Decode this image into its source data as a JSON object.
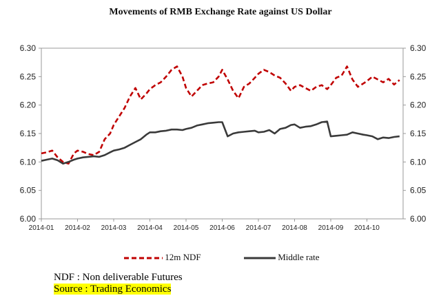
{
  "title": "Movements of RMB Exchange Rate against US Dollar",
  "colors": {
    "ndf": "#c00000",
    "mid": "#3a3a3a",
    "axis": "#999999"
  },
  "footnotes": {
    "ndf_def": "NDF  : Non deliverable Futures",
    "source": "Source : Trading Economics"
  },
  "chart_data": {
    "type": "line",
    "title": "Movements of RMB Exchange Rate against US Dollar",
    "xlabel": "",
    "ylabel": "",
    "ylim": [
      6.0,
      6.3
    ],
    "yticks": [
      "6.00",
      "6.05",
      "6.10",
      "6.15",
      "6.20",
      "6.25",
      "6.30"
    ],
    "x_ticks": [
      "2014-01",
      "2014-02",
      "2014-03",
      "2014-04",
      "2014-05",
      "2014-06",
      "2014-07",
      "2014-08",
      "2014-09",
      "2014-10"
    ],
    "x": [
      0.0,
      0.15,
      0.3,
      0.45,
      0.6,
      0.75,
      0.9,
      1.0,
      1.15,
      1.3,
      1.45,
      1.6,
      1.75,
      1.9,
      2.0,
      2.15,
      2.3,
      2.45,
      2.6,
      2.75,
      2.9,
      3.0,
      3.15,
      3.3,
      3.45,
      3.6,
      3.75,
      3.9,
      4.0,
      4.15,
      4.3,
      4.45,
      4.6,
      4.75,
      4.9,
      5.0,
      5.15,
      5.3,
      5.45,
      5.6,
      5.75,
      5.9,
      6.0,
      6.15,
      6.3,
      6.45,
      6.6,
      6.75,
      6.9,
      7.0,
      7.15,
      7.3,
      7.45,
      7.6,
      7.75,
      7.9,
      8.0,
      8.15,
      8.3,
      8.45,
      8.6,
      8.75,
      8.9,
      9.0,
      9.15,
      9.3,
      9.45,
      9.6,
      9.75,
      9.9
    ],
    "series": [
      {
        "name": "12m NDF",
        "style": "dashed",
        "values": [
          6.115,
          6.117,
          6.12,
          6.108,
          6.1,
          6.097,
          6.115,
          6.12,
          6.118,
          6.114,
          6.112,
          6.118,
          6.14,
          6.15,
          6.165,
          6.18,
          6.195,
          6.215,
          6.23,
          6.21,
          6.22,
          6.228,
          6.235,
          6.24,
          6.25,
          6.262,
          6.268,
          6.25,
          6.23,
          6.215,
          6.225,
          6.235,
          6.238,
          6.24,
          6.25,
          6.262,
          6.245,
          6.225,
          6.212,
          6.232,
          6.238,
          6.248,
          6.255,
          6.262,
          6.258,
          6.252,
          6.248,
          6.238,
          6.225,
          6.232,
          6.235,
          6.23,
          6.225,
          6.232,
          6.235,
          6.228,
          6.235,
          6.248,
          6.252,
          6.268,
          6.245,
          6.232,
          6.238,
          6.242,
          6.25,
          6.245,
          6.24,
          6.246,
          6.236,
          6.244
        ]
      },
      {
        "name": "Middle rate",
        "style": "solid",
        "values": [
          6.102,
          6.104,
          6.106,
          6.103,
          6.097,
          6.1,
          6.104,
          6.106,
          6.108,
          6.109,
          6.11,
          6.109,
          6.112,
          6.117,
          6.12,
          6.122,
          6.125,
          6.13,
          6.135,
          6.14,
          6.148,
          6.152,
          6.152,
          6.154,
          6.155,
          6.157,
          6.157,
          6.156,
          6.158,
          6.16,
          6.164,
          6.166,
          6.168,
          6.169,
          6.17,
          6.17,
          6.145,
          6.15,
          6.152,
          6.153,
          6.154,
          6.155,
          6.152,
          6.153,
          6.156,
          6.15,
          6.158,
          6.16,
          6.165,
          6.166,
          6.16,
          6.162,
          6.163,
          6.166,
          6.17,
          6.171,
          6.145,
          6.146,
          6.147,
          6.148,
          6.152,
          6.15,
          6.148,
          6.147,
          6.145,
          6.14,
          6.143,
          6.142,
          6.144,
          6.145
        ]
      }
    ],
    "grid": false,
    "legend": "bottom"
  }
}
